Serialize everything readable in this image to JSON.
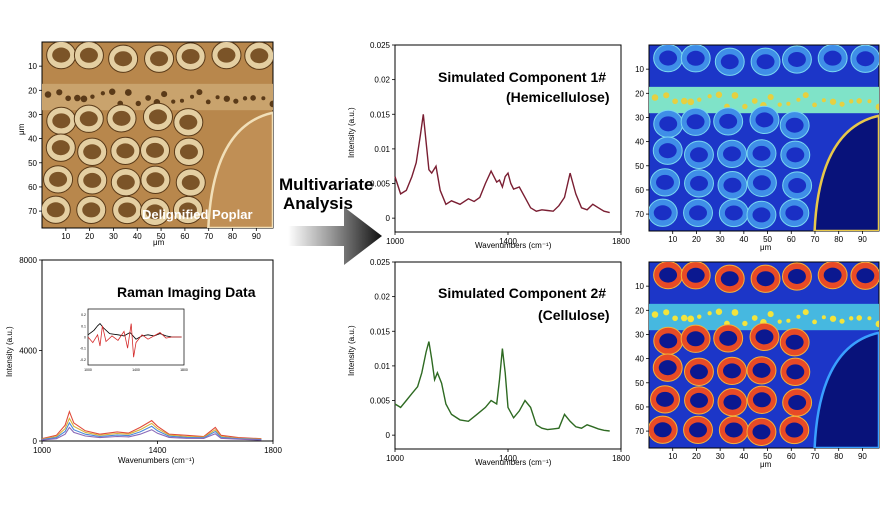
{
  "microscopy": {
    "poplar_label": "Delignified Poplar",
    "x_ticks": [
      "10",
      "20",
      "30",
      "40",
      "50",
      "60",
      "70",
      "80",
      "90"
    ],
    "y_ticks": [
      "10",
      "20",
      "30",
      "40",
      "50",
      "60",
      "70"
    ],
    "unit": "μm"
  },
  "arrow_label_line1": "Multivariate",
  "arrow_label_line2": "Analysis",
  "chart_data": [
    {
      "type": "line",
      "title": "Raman Imaging Data",
      "xlabel": "Wavenumbers (cm⁻¹)",
      "ylabel": "Intensity (a.u.)",
      "xlim": [
        1000,
        1800
      ],
      "ylim": [
        0,
        8000
      ],
      "x_ticks": [
        "1000",
        "1400",
        "1800"
      ],
      "y_ticks": [
        "0",
        "4000",
        "8000"
      ],
      "series": [
        {
          "color": "#e04b3a",
          "x": [
            1000,
            1050,
            1080,
            1095,
            1110,
            1150,
            1200,
            1260,
            1300,
            1340,
            1380,
            1400,
            1440,
            1500,
            1560,
            1600,
            1620,
            1680,
            1760
          ],
          "y": [
            100,
            250,
            700,
            1300,
            800,
            450,
            300,
            400,
            350,
            600,
            900,
            650,
            300,
            250,
            200,
            600,
            250,
            150,
            100
          ]
        },
        {
          "color": "#d8b23a",
          "x": [
            1000,
            1050,
            1080,
            1095,
            1110,
            1150,
            1200,
            1260,
            1300,
            1340,
            1380,
            1400,
            1440,
            1500,
            1560,
            1600,
            1620,
            1680,
            1760
          ],
          "y": [
            80,
            200,
            550,
            1000,
            650,
            380,
            250,
            330,
            300,
            500,
            780,
            550,
            260,
            200,
            170,
            500,
            200,
            120,
            80
          ]
        },
        {
          "color": "#4a8ad8",
          "x": [
            1000,
            1050,
            1080,
            1095,
            1110,
            1150,
            1200,
            1260,
            1300,
            1340,
            1380,
            1400,
            1440,
            1500,
            1560,
            1600,
            1620,
            1680,
            1760
          ],
          "y": [
            60,
            150,
            420,
            800,
            500,
            300,
            200,
            260,
            240,
            400,
            650,
            450,
            210,
            160,
            140,
            420,
            160,
            100,
            60
          ]
        },
        {
          "color": "#8a6ab8",
          "x": [
            1000,
            1050,
            1080,
            1095,
            1110,
            1150,
            1200,
            1260,
            1300,
            1340,
            1380,
            1400,
            1440,
            1500,
            1560,
            1600,
            1620,
            1680,
            1760
          ],
          "y": [
            40,
            100,
            300,
            600,
            380,
            220,
            150,
            200,
            180,
            300,
            500,
            340,
            160,
            120,
            110,
            320,
            120,
            80,
            40
          ]
        }
      ],
      "inset": {
        "x_ticks": [
          "1000",
          "1400",
          "1800"
        ],
        "y_ticks": [
          "0.2",
          "0.1",
          "0",
          "-0.1",
          "-0.2"
        ],
        "xlim": [
          1000,
          1800
        ],
        "ylim": [
          -0.25,
          0.25
        ],
        "series": [
          {
            "color": "#000000",
            "x": [
              1000,
              1050,
              1080,
              1100,
              1130,
              1180,
              1250,
              1300,
              1350,
              1400,
              1450,
              1500,
              1550,
              1600,
              1650,
              1700,
              1780
            ],
            "y": [
              0.02,
              0.06,
              0.1,
              0.12,
              0.08,
              0.03,
              0.02,
              0.01,
              0.04,
              -0.02,
              0.01,
              0.02,
              0.01,
              0.03,
              0.01,
              0.0,
              0.0
            ]
          },
          {
            "color": "#d42a2a",
            "x": [
              1000,
              1040,
              1080,
              1100,
              1120,
              1150,
              1200,
              1250,
              1300,
              1330,
              1360,
              1380,
              1400,
              1450,
              1500,
              1550,
              1600,
              1650,
              1700,
              1780
            ],
            "y": [
              0.0,
              -0.05,
              0.02,
              -0.08,
              0.1,
              -0.04,
              0.01,
              -0.03,
              0.05,
              -0.1,
              0.12,
              -0.18,
              -0.05,
              0.02,
              -0.02,
              0.01,
              0.04,
              -0.01,
              0.0,
              0.0
            ]
          }
        ]
      }
    },
    {
      "type": "line",
      "title_line1": "Simulated Component 1#",
      "title_line2": "(Hemicellulose)",
      "xlabel": "Wavenumbers (cm⁻¹)",
      "ylabel": "Intensity (a.u.)",
      "xlim": [
        1000,
        1800
      ],
      "ylim": [
        -0.002,
        0.025
      ],
      "x_ticks": [
        "1000",
        "1400",
        "1800"
      ],
      "y_ticks": [
        "0",
        "0.005",
        "0.01",
        "0.015",
        "0.02",
        "0.025"
      ],
      "series": [
        {
          "color": "#7a1e32",
          "x": [
            1000,
            1020,
            1040,
            1060,
            1075,
            1090,
            1100,
            1110,
            1120,
            1130,
            1145,
            1160,
            1180,
            1200,
            1230,
            1260,
            1280,
            1300,
            1320,
            1340,
            1360,
            1370,
            1380,
            1390,
            1400,
            1410,
            1420,
            1440,
            1460,
            1480,
            1500,
            1520,
            1540,
            1560,
            1580,
            1600,
            1620,
            1640,
            1660,
            1680,
            1700,
            1720,
            1740,
            1760
          ],
          "y": [
            0.006,
            0.0035,
            0.004,
            0.006,
            0.008,
            0.012,
            0.015,
            0.011,
            0.007,
            0.0065,
            0.0075,
            0.004,
            0.002,
            0.0025,
            0.002,
            0.0028,
            0.0024,
            0.003,
            0.005,
            0.0068,
            0.0052,
            0.0055,
            0.0045,
            0.006,
            0.0065,
            0.005,
            0.0042,
            0.0045,
            0.003,
            0.0015,
            0.001,
            0.0012,
            0.0011,
            0.001,
            0.0018,
            0.003,
            0.0065,
            0.0035,
            0.0015,
            0.0012,
            0.002,
            0.0015,
            0.001,
            0.0008
          ]
        }
      ]
    },
    {
      "type": "line",
      "title_line1": "Simulated Component 2#",
      "title_line2": "(Cellulose)",
      "xlabel": "Wavenumbers (cm⁻¹)",
      "ylabel": "Intensity (a.u.)",
      "xlim": [
        1000,
        1800
      ],
      "ylim": [
        -0.002,
        0.025
      ],
      "x_ticks": [
        "1000",
        "1400",
        "1800"
      ],
      "y_ticks": [
        "0",
        "0.005",
        "0.01",
        "0.015",
        "0.02",
        "0.025"
      ],
      "series": [
        {
          "color": "#2e6a22",
          "x": [
            1000,
            1020,
            1040,
            1060,
            1080,
            1095,
            1110,
            1120,
            1130,
            1140,
            1150,
            1165,
            1180,
            1200,
            1230,
            1260,
            1290,
            1320,
            1340,
            1360,
            1370,
            1380,
            1390,
            1400,
            1420,
            1440,
            1460,
            1480,
            1500,
            1520,
            1540,
            1560,
            1580,
            1600,
            1620,
            1640,
            1660,
            1680,
            1700,
            1720,
            1740,
            1760
          ],
          "y": [
            0.0045,
            0.004,
            0.005,
            0.006,
            0.007,
            0.009,
            0.012,
            0.0135,
            0.011,
            0.008,
            0.009,
            0.0075,
            0.0045,
            0.003,
            0.0022,
            0.002,
            0.003,
            0.004,
            0.005,
            0.0045,
            0.008,
            0.0125,
            0.009,
            0.004,
            0.0025,
            0.0035,
            0.005,
            0.004,
            0.0015,
            0.001,
            0.0008,
            0.0009,
            0.001,
            0.003,
            0.002,
            0.0012,
            0.001,
            0.0015,
            0.0012,
            0.0009,
            0.0007,
            0.0006
          ]
        }
      ]
    }
  ]
}
